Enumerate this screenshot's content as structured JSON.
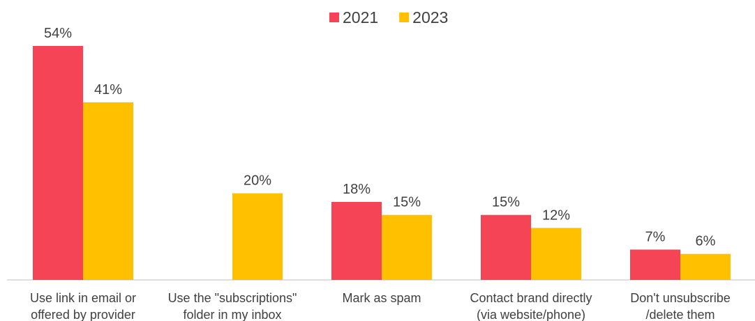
{
  "chart_data": {
    "type": "bar",
    "categories": [
      "Use link in email or\noffered by provider",
      "Use the \"subscriptions\"\nfolder in my inbox",
      "Mark as spam",
      "Contact brand directly\n(via website/phone)",
      "Don't unsubscribe\n/delete them"
    ],
    "series": [
      {
        "name": "2021",
        "color": "#f44455",
        "values": [
          54,
          null,
          18,
          15,
          7
        ],
        "value_labels": [
          "54%",
          null,
          "18%",
          "15%",
          "7%"
        ]
      },
      {
        "name": "2023",
        "color": "#ffc000",
        "values": [
          41,
          20,
          15,
          12,
          6
        ],
        "value_labels": [
          "41%",
          "20%",
          "15%",
          "12%",
          "6%"
        ]
      }
    ],
    "legend": "top"
  }
}
